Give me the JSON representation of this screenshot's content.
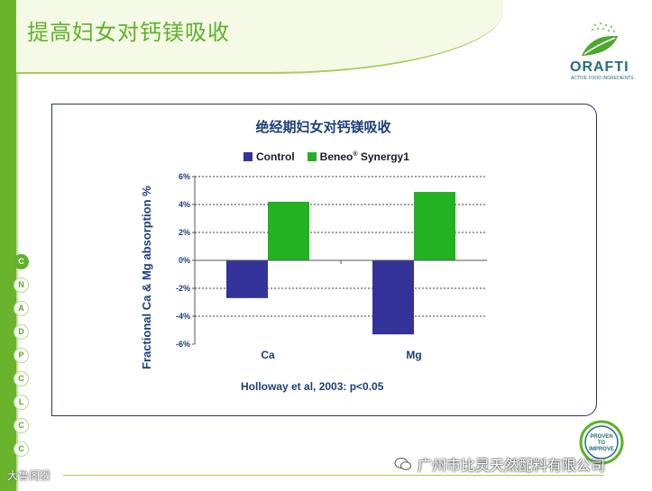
{
  "slide": {
    "title": "提高妇女对钙镁吸收",
    "logo_text": "ORAFTI",
    "logo_subtext": "ACTIVE FOOD INGREDIENTS",
    "badge_lines": [
      "PROVEN",
      "TO",
      "IMPROVE"
    ]
  },
  "nav": {
    "letters": [
      "C",
      "N",
      "A",
      "D",
      "P",
      "C",
      "L",
      "C",
      "C"
    ],
    "active_index": 0
  },
  "chart_data": {
    "type": "bar",
    "title": "绝经期妇女对钙镁吸收",
    "categories": [
      "Ca",
      "Mg"
    ],
    "series": [
      {
        "name": "Control",
        "values": [
          -2.7,
          -5.3
        ],
        "color": "#333399"
      },
      {
        "name": "Beneo® Synergy1",
        "values": [
          4.2,
          4.9
        ],
        "color": "#22b222"
      }
    ],
    "ylabel": "Fractional Ca & Mg absorption %",
    "xlabel": "",
    "ylim": [
      -6,
      6
    ],
    "yticks": [
      -6,
      -4,
      -2,
      0,
      2,
      4,
      6
    ],
    "ytick_labels": [
      "-6%",
      "-4%",
      "-2%",
      "0%",
      "2%",
      "4%",
      "6%"
    ],
    "grid": "dotted horizontal",
    "legend_position": "top",
    "annotation": "Holloway et al, 2003: p<0.05"
  },
  "legend": {
    "control": "Control",
    "beneo_main": "Beneo",
    "beneo_sup": "®",
    "beneo_rest": " Synergy1"
  },
  "watermarks": {
    "left": "大鲁阁猴",
    "right": "广州市比灵天然配料有限公司"
  }
}
